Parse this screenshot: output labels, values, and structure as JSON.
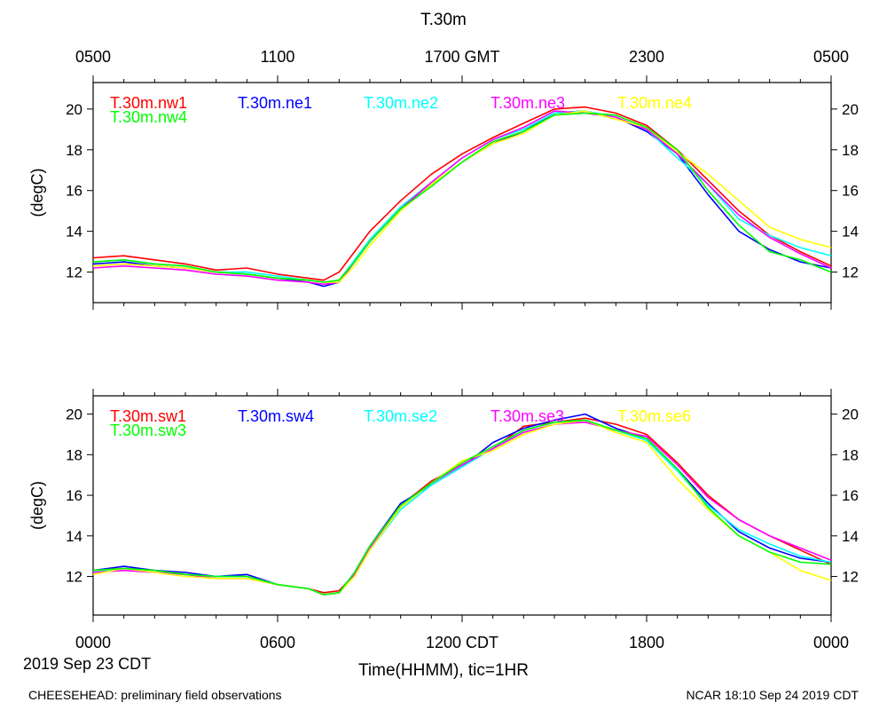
{
  "title": "T.30m",
  "xlabel": "Time(HHMM), tic=1HR",
  "date_label": "2019 Sep 23 CDT",
  "footer_left": "CHEESEHEAD: preliminary field observations",
  "footer_right": "NCAR 18:10 Sep 24 2019 CDT",
  "top_axis": {
    "ticks": [
      "0500",
      "1100",
      "1700 GMT",
      "2300",
      "0500"
    ]
  },
  "bottom_axis": {
    "ticks": [
      "0000",
      "0600",
      "1200 CDT",
      "1800",
      "0000"
    ]
  },
  "chart_data": [
    {
      "type": "line",
      "panel": "top",
      "title": "T.30m",
      "ylabel": "(degC)",
      "xlabel": "Time(HHMM), tic=1HR",
      "x_units": "hours since 2019-09-23 00:00 CDT",
      "xlim": [
        0,
        24
      ],
      "ylim": [
        10.5,
        21.3
      ],
      "yticks": [
        12,
        14,
        16,
        18,
        20
      ],
      "ytick_labels": [
        "12",
        "14",
        "16",
        "18",
        "20"
      ],
      "x": [
        0,
        1,
        2,
        3,
        4,
        5,
        6,
        7,
        7.5,
        8,
        8.5,
        9,
        10,
        11,
        12,
        13,
        14,
        15,
        16,
        17,
        18,
        19,
        20,
        21,
        22,
        23,
        24
      ],
      "series": [
        {
          "name": "T.30m.nw1",
          "color": "#ff0000",
          "values": [
            12.7,
            12.8,
            12.6,
            12.4,
            12.1,
            12.2,
            11.9,
            11.7,
            11.6,
            12.0,
            13.0,
            14.0,
            15.5,
            16.8,
            17.8,
            18.6,
            19.3,
            20.0,
            20.1,
            19.8,
            19.2,
            18.0,
            16.5,
            15.0,
            13.8,
            13.0,
            12.3
          ]
        },
        {
          "name": "T.30m.ne1",
          "color": "#0000ff",
          "values": [
            12.4,
            12.5,
            12.3,
            12.2,
            12.0,
            11.9,
            11.7,
            11.5,
            11.3,
            11.5,
            12.5,
            13.5,
            15.1,
            16.3,
            17.4,
            18.3,
            18.9,
            19.8,
            19.9,
            19.6,
            18.9,
            17.8,
            15.8,
            14.0,
            13.1,
            12.5,
            12.2
          ]
        },
        {
          "name": "T.30m.ne2",
          "color": "#00ffff",
          "values": [
            12.5,
            12.6,
            12.4,
            12.3,
            12.0,
            12.0,
            11.8,
            11.6,
            11.5,
            11.6,
            12.6,
            13.6,
            15.2,
            16.4,
            17.6,
            18.5,
            19.0,
            19.8,
            19.9,
            19.6,
            19.0,
            17.6,
            16.3,
            14.6,
            13.8,
            13.2,
            12.8
          ]
        },
        {
          "name": "T.30m.ne3",
          "color": "#ff00ff",
          "values": [
            12.2,
            12.3,
            12.2,
            12.1,
            11.9,
            11.8,
            11.6,
            11.5,
            11.4,
            11.5,
            12.5,
            13.5,
            15.1,
            16.4,
            17.6,
            18.5,
            19.1,
            19.9,
            19.8,
            19.6,
            19.0,
            17.8,
            16.3,
            14.8,
            13.7,
            12.9,
            12.2
          ]
        },
        {
          "name": "T.30m.ne4",
          "color": "#ffff00",
          "values": [
            12.3,
            12.4,
            12.3,
            12.2,
            12.0,
            11.9,
            11.7,
            11.6,
            11.5,
            11.5,
            12.3,
            13.3,
            15.0,
            16.3,
            17.4,
            18.3,
            18.8,
            19.7,
            19.9,
            19.5,
            19.1,
            17.9,
            16.8,
            15.5,
            14.2,
            13.6,
            13.2
          ]
        },
        {
          "name": "T.30m.nw4",
          "color": "#00ff00",
          "values": [
            12.5,
            12.6,
            12.4,
            12.3,
            12.0,
            11.9,
            11.7,
            11.6,
            11.5,
            11.6,
            12.5,
            13.5,
            15.1,
            16.2,
            17.4,
            18.4,
            18.9,
            19.7,
            19.8,
            19.7,
            19.1,
            18.0,
            16.0,
            14.3,
            13.0,
            12.6,
            12.0
          ]
        }
      ]
    },
    {
      "type": "line",
      "panel": "bottom",
      "ylabel": "(degC)",
      "xlabel": "Time(HHMM), tic=1HR",
      "x_units": "hours since 2019-09-23 00:00 CDT",
      "xlim": [
        0,
        24
      ],
      "ylim": [
        10.1,
        20.9
      ],
      "yticks": [
        12,
        14,
        16,
        18,
        20
      ],
      "ytick_labels": [
        "12",
        "14",
        "16",
        "18",
        "20"
      ],
      "x": [
        0,
        1,
        2,
        3,
        4,
        5,
        6,
        7,
        7.5,
        8,
        8.5,
        9,
        10,
        11,
        12,
        13,
        14,
        15,
        16,
        17,
        18,
        19,
        20,
        21,
        22,
        23,
        24
      ],
      "series": [
        {
          "name": "T.30m.sw1",
          "color": "#ff0000",
          "values": [
            12.3,
            12.4,
            12.3,
            12.1,
            12.0,
            12.0,
            11.6,
            11.4,
            11.2,
            11.3,
            12.1,
            13.4,
            15.5,
            16.7,
            17.5,
            18.3,
            19.4,
            19.6,
            19.8,
            19.5,
            19.0,
            17.6,
            16.0,
            14.8,
            14.0,
            13.3,
            12.6
          ]
        },
        {
          "name": "T.30m.sw4",
          "color": "#0000ff",
          "values": [
            12.3,
            12.5,
            12.3,
            12.2,
            12.0,
            12.1,
            11.6,
            11.4,
            11.1,
            11.2,
            12.2,
            13.5,
            15.6,
            16.5,
            17.4,
            18.6,
            19.3,
            19.7,
            20.0,
            19.3,
            18.8,
            17.3,
            15.6,
            14.2,
            13.4,
            12.9,
            12.7
          ]
        },
        {
          "name": "T.30m.se2",
          "color": "#00ffff",
          "values": [
            12.2,
            12.4,
            12.2,
            12.1,
            12.0,
            12.0,
            11.6,
            11.4,
            11.1,
            11.2,
            12.0,
            13.3,
            15.3,
            16.5,
            17.4,
            18.3,
            19.2,
            19.6,
            19.7,
            19.2,
            18.7,
            17.2,
            15.5,
            14.3,
            13.6,
            13.0,
            12.7
          ]
        },
        {
          "name": "T.30m.se3",
          "color": "#ff00ff",
          "values": [
            12.2,
            12.3,
            12.2,
            12.1,
            11.9,
            11.9,
            11.6,
            11.4,
            11.1,
            11.2,
            12.1,
            13.4,
            15.4,
            16.6,
            17.5,
            18.3,
            19.1,
            19.5,
            19.6,
            19.2,
            18.9,
            17.5,
            15.9,
            14.8,
            14.0,
            13.4,
            12.8
          ]
        },
        {
          "name": "T.30m.se6",
          "color": "#ffff00",
          "values": [
            12.1,
            12.4,
            12.2,
            12.0,
            11.9,
            11.9,
            11.6,
            11.4,
            11.1,
            11.2,
            12.0,
            13.3,
            15.4,
            16.6,
            17.7,
            18.2,
            19.0,
            19.5,
            19.7,
            19.1,
            18.6,
            16.8,
            15.3,
            14.0,
            13.2,
            12.3,
            11.8
          ]
        },
        {
          "name": "T.30m.sw3",
          "color": "#00ff00",
          "values": [
            12.3,
            12.4,
            12.3,
            12.1,
            12.0,
            12.0,
            11.6,
            11.4,
            11.1,
            11.2,
            12.2,
            13.5,
            15.5,
            16.6,
            17.6,
            18.4,
            19.2,
            19.6,
            19.7,
            19.2,
            18.8,
            17.3,
            15.4,
            14.0,
            13.2,
            12.7,
            12.6
          ]
        }
      ]
    }
  ]
}
